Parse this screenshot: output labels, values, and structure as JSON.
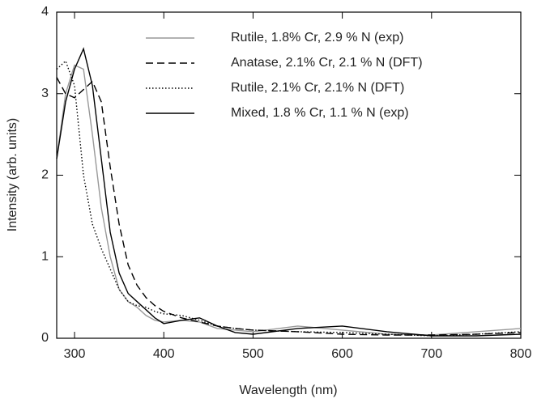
{
  "chart_data": {
    "type": "line",
    "x_label": "Wavelength (nm)",
    "y_label": "Intensity (arb. units)",
    "x": [
      280,
      290,
      300,
      310,
      320,
      330,
      340,
      350,
      360,
      370,
      380,
      390,
      400,
      420,
      440,
      460,
      480,
      500,
      550,
      600,
      650,
      700,
      750,
      800
    ],
    "series": [
      {
        "name": "Rutile, 1.8% Cr, 2.9 % N (exp)",
        "color": "#999999",
        "style": "solid",
        "values": [
          2.2,
          3.0,
          3.35,
          3.3,
          2.5,
          1.6,
          1.0,
          0.6,
          0.45,
          0.38,
          0.28,
          0.22,
          0.2,
          0.22,
          0.2,
          0.12,
          0.1,
          0.08,
          0.15,
          0.1,
          0.05,
          0.04,
          0.08,
          0.12
        ]
      },
      {
        "name": "Anatase, 2.1% Cr, 2.1 % N (DFT)",
        "color": "#000000",
        "style": "dashed",
        "values": [
          3.2,
          3.0,
          2.95,
          3.05,
          3.15,
          2.9,
          2.1,
          1.4,
          0.9,
          0.65,
          0.5,
          0.4,
          0.33,
          0.25,
          0.2,
          0.15,
          0.12,
          0.1,
          0.08,
          0.05,
          0.04,
          0.04,
          0.05,
          0.07
        ]
      },
      {
        "name": "Rutile, 2.1% Cr, 2.1% N (DFT)",
        "color": "#000000",
        "style": "dotted",
        "values": [
          3.3,
          3.4,
          3.1,
          2.0,
          1.4,
          1.1,
          0.85,
          0.6,
          0.45,
          0.4,
          0.38,
          0.33,
          0.3,
          0.28,
          0.22,
          0.15,
          0.12,
          0.1,
          0.08,
          0.07,
          0.05,
          0.03,
          0.05,
          0.08
        ]
      },
      {
        "name": "Mixed, 1.8 % Cr, 1.1 % N (exp)",
        "color": "#000000",
        "style": "solid",
        "values": [
          2.2,
          2.9,
          3.3,
          3.55,
          3.1,
          2.2,
          1.3,
          0.8,
          0.55,
          0.45,
          0.35,
          0.25,
          0.18,
          0.22,
          0.25,
          0.15,
          0.07,
          0.05,
          0.12,
          0.15,
          0.08,
          0.03,
          0.03,
          0.05
        ]
      }
    ],
    "xlim": [
      280,
      800
    ],
    "xticks": [
      300,
      400,
      500,
      600,
      700,
      800
    ],
    "ylim": [
      0,
      4
    ],
    "yticks": [
      0,
      1,
      2,
      3,
      4
    ],
    "legend": "top-right"
  }
}
